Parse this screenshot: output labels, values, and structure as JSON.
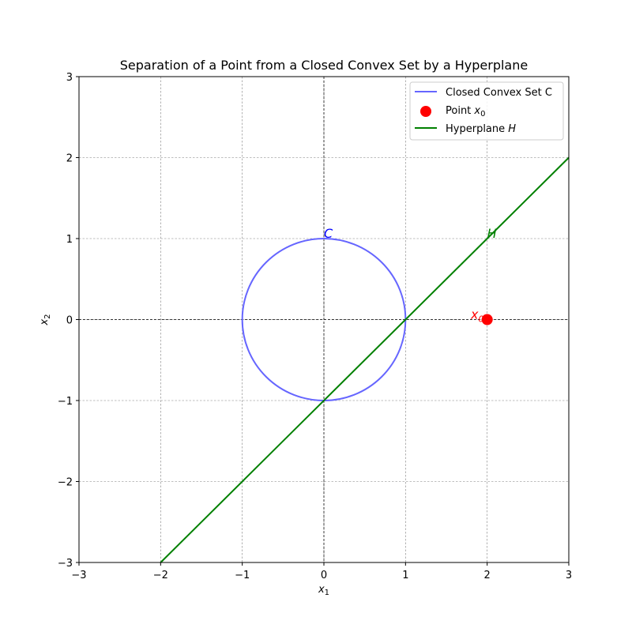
{
  "chart_data": {
    "type": "line",
    "title": "Separation of a Point from a Closed Convex Set by a Hyperplane",
    "xlabel": "x",
    "xlabel_sub": "1",
    "ylabel": "x",
    "ylabel_sub": "2",
    "xlim": [
      -3,
      3
    ],
    "ylim": [
      -3,
      3
    ],
    "xticks": [
      -3,
      -2,
      -1,
      0,
      1,
      2,
      3
    ],
    "yticks": [
      -3,
      -2,
      -1,
      0,
      1,
      2,
      3
    ],
    "grid": true,
    "legend_position": "top-right",
    "series": [
      {
        "name": "Closed Convex Set C",
        "kind": "circle",
        "center": [
          0,
          0
        ],
        "radius": 1,
        "color": "#6666ff"
      },
      {
        "name": "Point",
        "name_math": "x",
        "name_sub": "0",
        "kind": "point",
        "x": [
          2
        ],
        "y": [
          0
        ],
        "color": "#ff0000"
      },
      {
        "name": "Hyperplane",
        "name_math": "H",
        "kind": "line",
        "x": [
          -2,
          3
        ],
        "y": [
          -3,
          2
        ],
        "color": "#008000"
      }
    ],
    "annotations": [
      {
        "text": "C",
        "x": 0,
        "y": 1,
        "color": "#0000ff"
      },
      {
        "text": "H",
        "x": 2,
        "y": 1,
        "color": "#008000"
      },
      {
        "text": "x",
        "sub": "0",
        "x": 1.8,
        "y": 0,
        "color": "#ff0000"
      }
    ]
  }
}
